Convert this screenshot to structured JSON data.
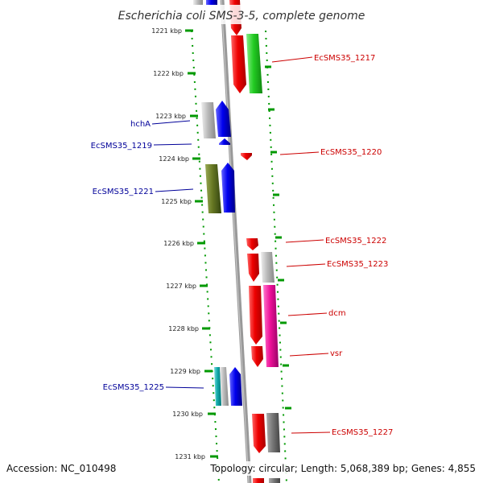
{
  "title": "Escherichia coli SMS-3-5, complete genome",
  "footer": {
    "accession": "Accession: NC_010498",
    "topology": "Topology: circular; Length: 5,068,389 bp; Genes: 4,855"
  },
  "kbp_labels": [
    "1221 kbp",
    "1222 kbp",
    "1223 kbp",
    "1224 kbp",
    "1225 kbp",
    "1226 kbp",
    "1227 kbp",
    "1228 kbp",
    "1229 kbp",
    "1230 kbp",
    "1231 kbp"
  ],
  "gene_labels": {
    "EcSMS35_1217": "EcSMS35_1217",
    "hchA": "hchA",
    "EcSMS35_1219": "EcSMS35_1219",
    "EcSMS35_1220": "EcSMS35_1220",
    "EcSMS35_1221": "EcSMS35_1221",
    "EcSMS35_1222": "EcSMS35_1222",
    "EcSMS35_1223": "EcSMS35_1223",
    "dcm": "dcm",
    "vsr": "vsr",
    "EcSMS35_1225": "EcSMS35_1225",
    "EcSMS35_1227": "EcSMS35_1227"
  },
  "colors": {
    "forward_label": "#cc0000",
    "reverse_label": "#000099",
    "track_green": "#009900",
    "backbone": "#888888"
  }
}
